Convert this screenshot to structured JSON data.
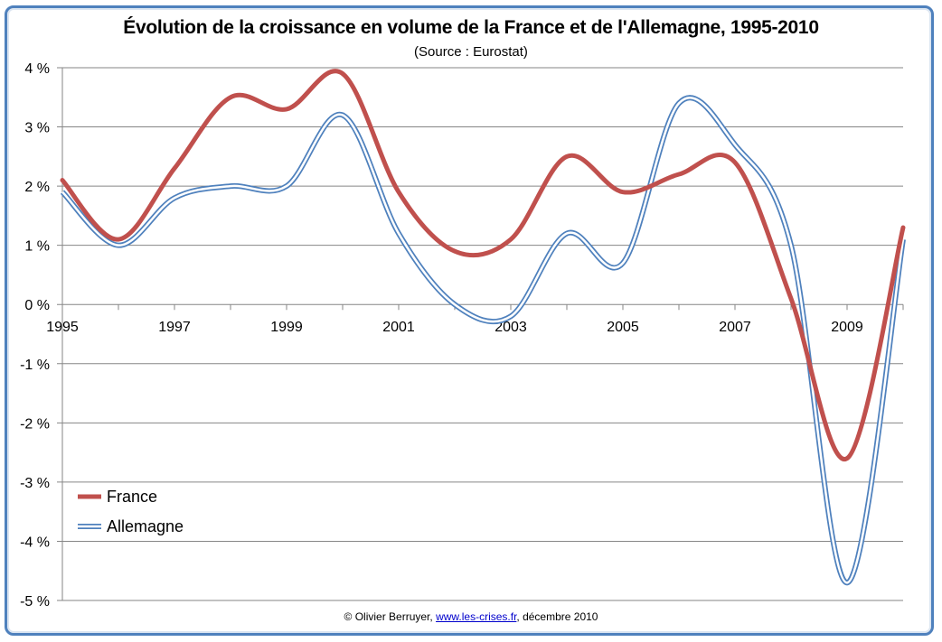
{
  "chart_data": {
    "type": "line",
    "title": "Évolution de la croissance en volume de la France et de l'Allemagne, 1995-2010",
    "subtitle": "(Source : Eurostat)",
    "xlabel": "",
    "ylabel": "",
    "x": [
      1995,
      1996,
      1997,
      1998,
      1999,
      2000,
      2001,
      2002,
      2003,
      2004,
      2005,
      2006,
      2007,
      2008,
      2009,
      2010
    ],
    "x_tick_labels": [
      "1995",
      "1997",
      "1999",
      "2001",
      "2003",
      "2005",
      "2007",
      "2009"
    ],
    "y_tick_labels": [
      "4 %",
      "3 %",
      "2 %",
      "1 %",
      "0 %",
      "-1 %",
      "-2 %",
      "-3 %",
      "-4 %",
      "-5 %"
    ],
    "ylim": [
      -5,
      4
    ],
    "grid": true,
    "legend_position": "bottom-left",
    "series": [
      {
        "name": "France",
        "color": "#c0504d",
        "values": [
          2.1,
          1.1,
          2.3,
          3.5,
          3.3,
          3.9,
          1.9,
          0.9,
          1.1,
          2.5,
          1.9,
          2.2,
          2.4,
          0.1,
          -2.6,
          1.3
        ]
      },
      {
        "name": "Allemagne",
        "color": "#4f81bd",
        "values": [
          1.9,
          1.0,
          1.8,
          2.0,
          2.0,
          3.2,
          1.2,
          0.0,
          -0.2,
          1.2,
          0.7,
          3.4,
          2.7,
          1.0,
          -4.7,
          1.1
        ]
      }
    ]
  },
  "footer": {
    "copyright": "© Olivier Berruyer, ",
    "link": "www.les-crises.fr",
    "date": ",  décembre 2010"
  }
}
